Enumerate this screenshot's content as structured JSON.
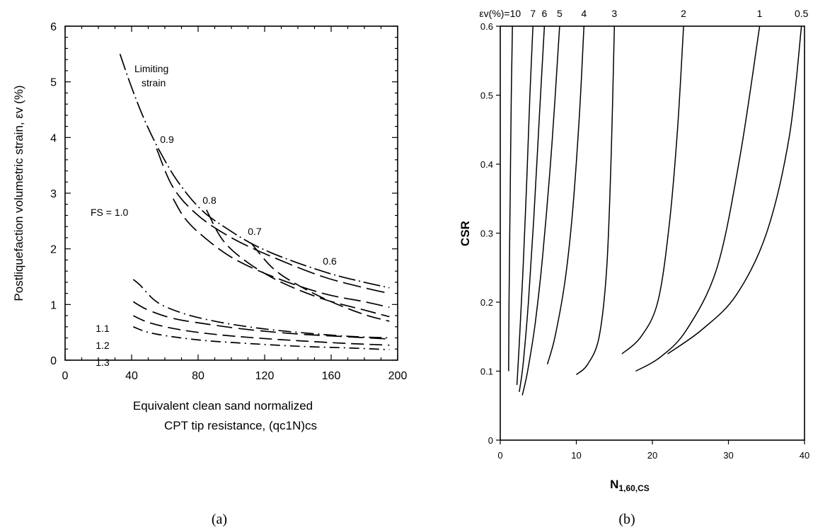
{
  "panels": {
    "a_caption": "(a)",
    "b_caption": "(b)"
  },
  "chart_data": [
    {
      "type": "line",
      "title": "",
      "ylabel": "Postliquefaction volumetric strain, εv (%)",
      "xlabel_line1": "Equivalent clean sand normalized",
      "xlabel_line2": "CPT tip resistance, (qc1N)cs",
      "xlim": [
        0,
        200
      ],
      "ylim": [
        0,
        6
      ],
      "xticks": [
        0,
        40,
        80,
        120,
        160,
        200
      ],
      "yticks": [
        0,
        1,
        2,
        3,
        4,
        5,
        6
      ],
      "annotations": {
        "limiting_line1": "Limiting",
        "limiting_line2": "strain",
        "fs_label": "FS = 1.0"
      },
      "limiting_strain": {
        "name": "Limiting strain",
        "x": [
          33,
          40,
          48,
          57,
          68,
          82,
          98,
          115,
          135,
          160,
          180,
          195
        ],
        "y": [
          5.5,
          4.9,
          4.3,
          3.75,
          3.2,
          2.7,
          2.35,
          2.05,
          1.8,
          1.55,
          1.4,
          1.3
        ]
      },
      "series": [
        {
          "name": "0.9",
          "x": [
            55,
            65,
            80,
            100,
            125,
            155,
            180,
            195
          ],
          "y": [
            3.8,
            3.1,
            2.6,
            2.2,
            1.85,
            1.5,
            1.3,
            1.2
          ]
        },
        {
          "name": "0.8",
          "x": [
            65,
            72,
            82,
            100,
            125,
            155,
            180,
            195
          ],
          "y": [
            2.9,
            2.55,
            2.25,
            1.85,
            1.5,
            1.2,
            1.05,
            0.95
          ]
        },
        {
          "name": "0.7",
          "x": [
            85,
            95,
            110,
            130,
            155,
            180,
            195
          ],
          "y": [
            2.7,
            2.15,
            1.75,
            1.4,
            1.1,
            0.9,
            0.78
          ]
        },
        {
          "name": "0.6",
          "x": [
            112,
            125,
            140,
            160,
            180,
            195
          ],
          "y": [
            2.1,
            1.65,
            1.35,
            1.05,
            0.82,
            0.7
          ]
        },
        {
          "name": "1.0",
          "x": [
            41,
            45,
            55,
            70,
            90,
            115,
            140,
            170,
            195
          ],
          "y": [
            1.45,
            1.35,
            1.05,
            0.85,
            0.7,
            0.58,
            0.5,
            0.43,
            0.4
          ]
        },
        {
          "name": "1.1",
          "x": [
            41,
            50,
            65,
            85,
            110,
            140,
            170,
            195
          ],
          "y": [
            1.05,
            0.9,
            0.75,
            0.65,
            0.55,
            0.47,
            0.42,
            0.38
          ]
        },
        {
          "name": "1.2",
          "x": [
            41,
            50,
            65,
            85,
            110,
            140,
            170,
            195
          ],
          "y": [
            0.8,
            0.68,
            0.57,
            0.48,
            0.41,
            0.35,
            0.3,
            0.27
          ]
        },
        {
          "name": "1.3",
          "x": [
            41,
            50,
            65,
            85,
            110,
            140,
            170,
            195
          ],
          "y": [
            0.6,
            0.5,
            0.42,
            0.35,
            0.3,
            0.25,
            0.22,
            0.19
          ]
        }
      ]
    },
    {
      "type": "line",
      "title": "",
      "ylabel": "CSR",
      "xlabel_main": "N",
      "xlabel_sub": "1,60,CS",
      "xlim": [
        0,
        40
      ],
      "ylim": [
        0,
        0.6
      ],
      "xticks": [
        0,
        10,
        20,
        30,
        40
      ],
      "yticks": [
        0,
        0.1,
        0.2,
        0.3,
        0.4,
        0.5,
        0.6
      ],
      "top_prefix": "εv(%)=10",
      "series": [
        {
          "name": "10",
          "x": [
            1.1,
            1.15,
            1.3,
            1.45,
            1.6
          ],
          "y": [
            0.1,
            0.2,
            0.35,
            0.5,
            0.6
          ]
        },
        {
          "name": "7",
          "x": [
            2.2,
            2.5,
            3.0,
            3.5,
            3.9,
            4.3
          ],
          "y": [
            0.08,
            0.14,
            0.25,
            0.38,
            0.5,
            0.6
          ]
        },
        {
          "name": "6",
          "x": [
            2.5,
            3.0,
            3.7,
            4.4,
            5.1,
            5.8
          ],
          "y": [
            0.07,
            0.11,
            0.2,
            0.32,
            0.46,
            0.6
          ]
        },
        {
          "name": "5",
          "x": [
            2.9,
            3.6,
            4.6,
            5.6,
            6.8,
            7.8
          ],
          "y": [
            0.065,
            0.1,
            0.17,
            0.27,
            0.43,
            0.6
          ]
        },
        {
          "name": "4",
          "x": [
            6.2,
            7.2,
            8.5,
            9.5,
            10.4,
            11.0
          ],
          "y": [
            0.11,
            0.15,
            0.23,
            0.33,
            0.47,
            0.6
          ]
        },
        {
          "name": "3",
          "x": [
            10.0,
            11.5,
            13.0,
            14.0,
            14.6,
            15.0
          ],
          "y": [
            0.095,
            0.11,
            0.15,
            0.25,
            0.42,
            0.6
          ]
        },
        {
          "name": "2",
          "x": [
            16.0,
            18.5,
            20.7,
            22.2,
            23.3,
            24.1
          ],
          "y": [
            0.125,
            0.15,
            0.2,
            0.31,
            0.45,
            0.6
          ]
        },
        {
          "name": "1",
          "x": [
            17.8,
            21.0,
            24.5,
            28.5,
            31.5,
            34.1
          ],
          "y": [
            0.1,
            0.12,
            0.16,
            0.25,
            0.41,
            0.6
          ]
        },
        {
          "name": "0.5",
          "x": [
            22.0,
            26.5,
            31.0,
            35.0,
            38.0,
            39.6
          ],
          "y": [
            0.125,
            0.16,
            0.21,
            0.3,
            0.44,
            0.6
          ]
        }
      ]
    }
  ]
}
